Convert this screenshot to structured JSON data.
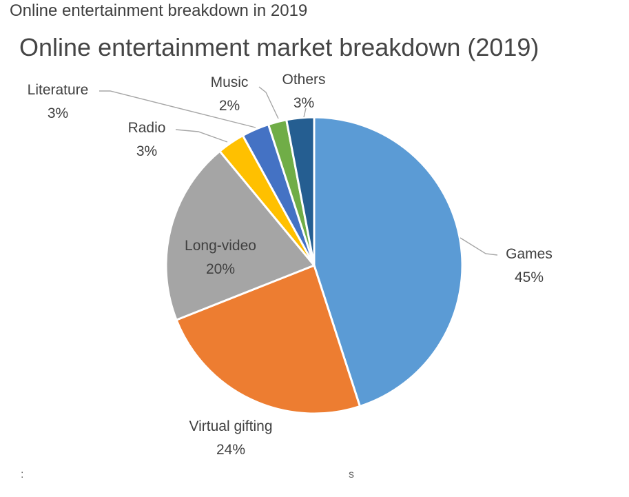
{
  "page": {
    "caption": "Online entertainment breakdown in 2019",
    "footer_left": ":",
    "footer_center": "s"
  },
  "chart_data": {
    "type": "pie",
    "title": "Online entertainment market breakdown (2019)",
    "start_angle_deg": 0,
    "direction": "clockwise",
    "slices": [
      {
        "label": "Games",
        "value": 45,
        "display": "45%",
        "color": "#5b9bd5"
      },
      {
        "label": "Virtual gifting",
        "value": 24,
        "display": "24%",
        "color": "#ed7d31"
      },
      {
        "label": "Long-video",
        "value": 20,
        "display": "20%",
        "color": "#a5a5a5"
      },
      {
        "label": "Radio",
        "value": 3,
        "display": "3%",
        "color": "#ffc000"
      },
      {
        "label": "Literature",
        "value": 3,
        "display": "3%",
        "color": "#4472c4"
      },
      {
        "label": "Music",
        "value": 2,
        "display": "2%",
        "color": "#70ad47"
      },
      {
        "label": "Others",
        "value": 3,
        "display": "3%",
        "color": "#255e91"
      }
    ],
    "data_labels": "category-and-percent",
    "legend": "none"
  }
}
